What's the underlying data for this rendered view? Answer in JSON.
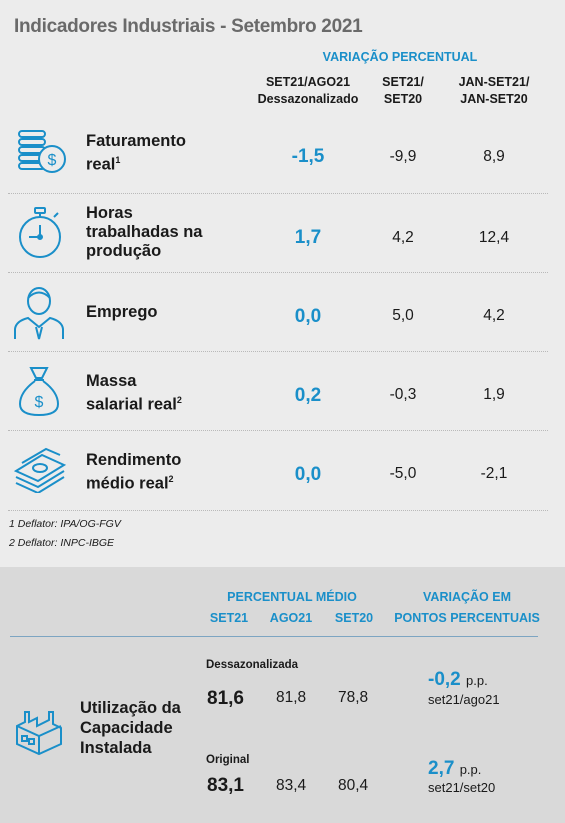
{
  "title": "Indicadores Industriais - Setembro 2021",
  "header": {
    "group_label": "VARIAÇÃO PERCENTUAL",
    "col1_line1": "SET21/AGO21",
    "col1_line2": "Dessazonalizado",
    "col2_line1": "SET21/",
    "col2_line2": "SET20",
    "col3_line1": "JAN-SET21/",
    "col3_line2": "JAN-SET20"
  },
  "rows": [
    {
      "label_line1": "Faturamento",
      "label_line2": "real",
      "sup": "1",
      "icon": "coins-icon",
      "v1": "-1,5",
      "v2": "-9,9",
      "v3": "8,9"
    },
    {
      "label_line1": "Horas",
      "label_line2": "trabalhadas na",
      "label_line3": "produção",
      "icon": "stopwatch-icon",
      "v1": "1,7",
      "v2": "4,2",
      "v3": "12,4"
    },
    {
      "label_line1": "Emprego",
      "icon": "worker-icon",
      "v1": "0,0",
      "v2": "5,0",
      "v3": "4,2"
    },
    {
      "label_line1": "Massa",
      "label_line2": "salarial real",
      "sup": "2",
      "icon": "money-bag-icon",
      "v1": "0,2",
      "v2": "-0,3",
      "v3": "1,9"
    },
    {
      "label_line1": "Rendimento",
      "label_line2": "médio real",
      "sup": "2",
      "icon": "banknotes-icon",
      "v1": "0,0",
      "v2": "-5,0",
      "v3": "-2,1"
    }
  ],
  "notes": [
    "1 Deflator: IPA/OG-FGV",
    "2 Deflator: INPC-IBGE"
  ],
  "capacity": {
    "avg_header": "PERCENTUAL MÉDIO",
    "col_set21": "SET21",
    "col_ago21": "AGO21",
    "col_set20": "SET20",
    "var_header_line1": "VARIAÇÃO EM",
    "var_header_line2": "PONTOS PERCENTUAIS",
    "label_line1": "Utilização da",
    "label_line2": "Capacidade",
    "label_line3": "Instalada",
    "icon": "factory-icon",
    "seasonal": {
      "label": "Dessazonalizada",
      "set21": "81,6",
      "ago21": "81,8",
      "set20": "78,8",
      "var": "-0,2",
      "unit": "p.p.",
      "ref": "set21/ago21"
    },
    "original": {
      "label": "Original",
      "set21": "83,1",
      "ago21": "83,4",
      "set20": "80,4",
      "var": "2,7",
      "unit": "p.p.",
      "ref": "set21/set20"
    }
  }
}
